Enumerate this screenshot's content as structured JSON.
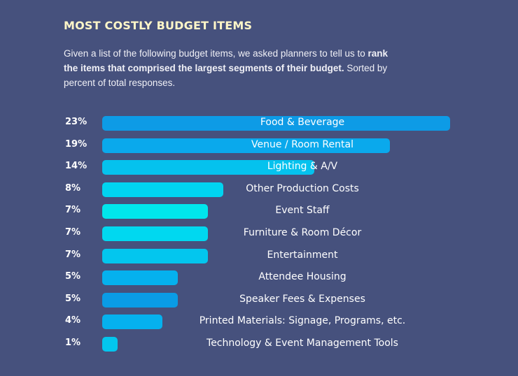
{
  "title": "MOST COSTLY BUDGET ITEMS",
  "description": {
    "part1": "Given a list of the following budget items, we asked planners to tell us to ",
    "bold": "rank the items that comprised the largest segments of their budget.",
    "part2": " Sorted by percent of total responses."
  },
  "chart_data": {
    "type": "bar",
    "orientation": "horizontal",
    "title": "MOST COSTLY BUDGET ITEMS",
    "xlabel": "",
    "ylabel": "",
    "xlim": [
      0,
      23
    ],
    "categories": [
      "Food & Beverage",
      "Venue / Room Rental",
      "Lighting & A/V",
      "Other Production Costs",
      "Event Staff",
      "Furniture & Room Décor",
      "Entertainment",
      "Attendee Housing",
      "Speaker Fees & Expenses",
      "Printed Materials: Signage, Programs, etc.",
      "Technology & Event Management Tools"
    ],
    "values": [
      23,
      19,
      14,
      8,
      7,
      7,
      7,
      5,
      5,
      4,
      1
    ],
    "value_labels": [
      "23%",
      "19%",
      "14%",
      "8%",
      "7%",
      "7%",
      "7%",
      "5%",
      "5%",
      "4%",
      "1%"
    ],
    "colors": [
      "#0d9be6",
      "#0aa9ec",
      "#05c2ee",
      "#00d4f0",
      "#00e6ec",
      "#00d8f0",
      "#03c6ee",
      "#05b1ee",
      "#0a9ce6",
      "#05b1ee",
      "#03c6ee"
    ]
  }
}
